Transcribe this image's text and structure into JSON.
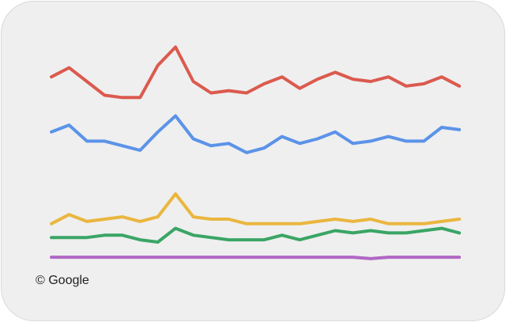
{
  "chart_data": {
    "type": "line",
    "categories": [
      null,
      null,
      null,
      null,
      null,
      null,
      null,
      null,
      null,
      null,
      null,
      null,
      null,
      null,
      null,
      null,
      null,
      null,
      null,
      null,
      null,
      null,
      null,
      null
    ],
    "series": [
      {
        "color": "#db5a4e",
        "values": [
          82,
          86,
          80,
          74,
          73,
          73,
          87,
          95,
          80,
          75,
          76,
          75,
          79,
          82,
          77,
          81,
          84,
          81,
          80,
          82,
          78,
          79,
          82,
          78
        ]
      },
      {
        "color": "#5b93e8",
        "values": [
          58,
          61,
          54,
          54,
          52,
          50,
          58,
          65,
          55,
          52,
          53,
          49,
          51,
          56,
          53,
          55,
          58,
          53,
          54,
          56,
          54,
          54,
          60,
          59
        ]
      },
      {
        "color": "#eab63f",
        "values": [
          18,
          22,
          19,
          20,
          21,
          19,
          21,
          31,
          21,
          20,
          20,
          18,
          18,
          18,
          18,
          19,
          20,
          19,
          20,
          18,
          18,
          18,
          19,
          20
        ]
      },
      {
        "color": "#3aa565",
        "values": [
          12,
          12,
          12,
          13,
          13,
          11,
          10,
          16,
          13,
          12,
          11,
          11,
          11,
          13,
          11,
          13,
          15,
          14,
          15,
          14,
          14,
          15,
          16,
          14
        ]
      },
      {
        "color": "#b068c4",
        "values": [
          3.4,
          3.4,
          3.4,
          3.4,
          3.4,
          3.4,
          3.4,
          3.4,
          3.4,
          3.4,
          3.4,
          3.4,
          3.4,
          3.4,
          3.4,
          3.4,
          3.4,
          3.4,
          2.8,
          3.4,
          3.4,
          3.4,
          3.4,
          3.4
        ]
      }
    ],
    "ylim": [
      0,
      100
    ],
    "source": "© Google"
  }
}
